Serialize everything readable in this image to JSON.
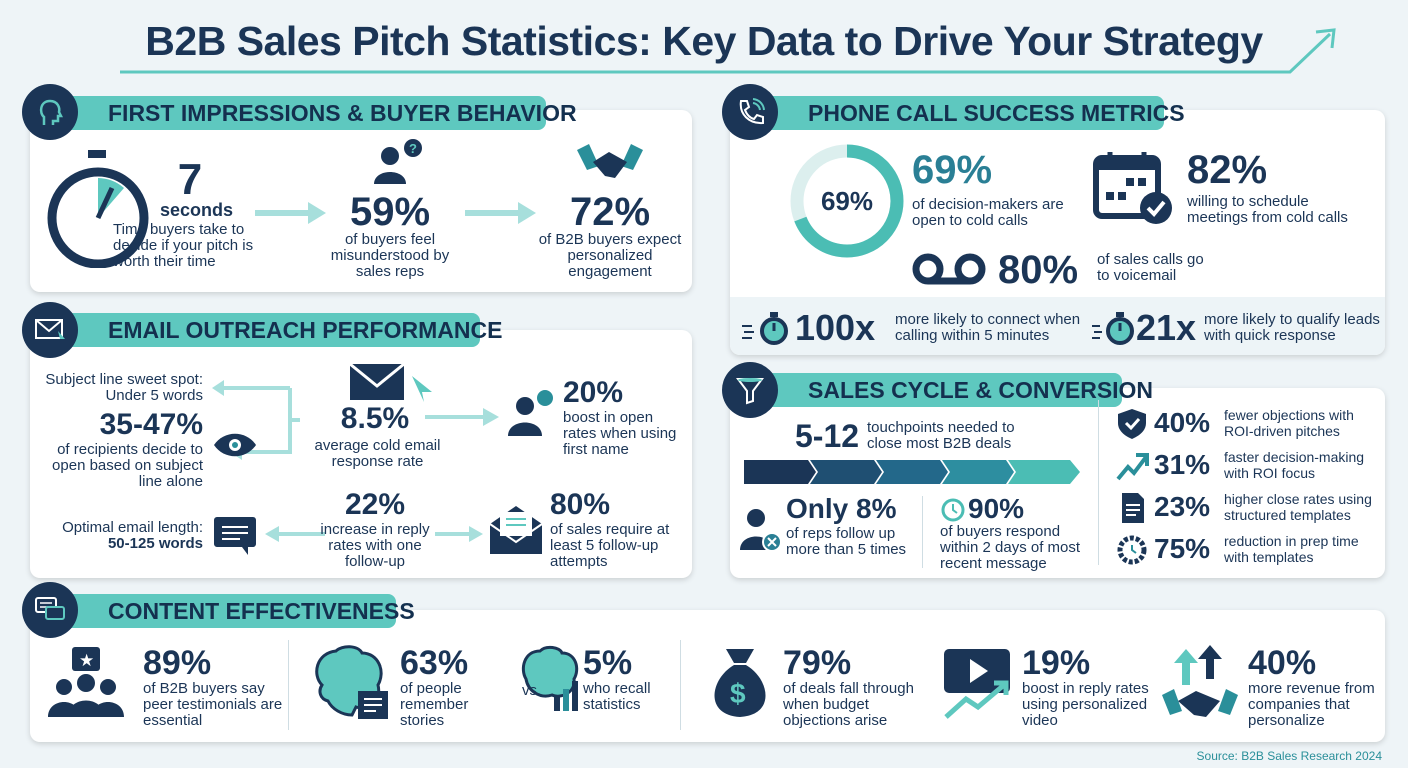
{
  "title": "B2B Sales Pitch Statistics: Key Data to Drive Your Strategy",
  "colors": {
    "navy": "#1b3556",
    "teal": "#5ec8bf",
    "background": "#eef4f7"
  },
  "first_impressions": {
    "heading": "FIRST IMPRESSIONS & BUYER BEHAVIOR",
    "icon": "head-icon",
    "stats": [
      {
        "value": "7",
        "unit": "seconds",
        "text": "Time buyers take to decide if your pitch is worth their time",
        "icon": "stopwatch-icon"
      },
      {
        "value": "59%",
        "text": "of buyers feel misunderstood by sales reps",
        "icon": "confused-person-icon"
      },
      {
        "value": "72%",
        "text": "of B2B buyers expect personalized engagement",
        "icon": "handshake-icon"
      }
    ]
  },
  "email": {
    "heading": "EMAIL OUTREACH PERFORMANCE",
    "icon": "email-cursor-icon",
    "subject_spot": "Subject line sweet spot: Under 5 words",
    "open_value": "35-47%",
    "open_text": "of recipients decide to open based on subject line alone",
    "response_value": "8.5%",
    "response_text": "average cold email response rate",
    "name_value": "20%",
    "name_text": "boost in open rates when using first name",
    "length_text": "Optimal email length:",
    "length_value": "50-125 words",
    "reply_value": "22%",
    "reply_text": "increase in reply rates with one follow-up",
    "followup_value": "80%",
    "followup_text": "of sales require at least 5 follow-up attempts"
  },
  "phone": {
    "heading": "PHONE CALL SUCCESS METRICS",
    "icon": "phone-icon",
    "donut_label": "69%",
    "donut_fraction": 0.69,
    "open_value": "69%",
    "open_text": "of decision-makers are open to cold calls",
    "schedule_value": "82%",
    "schedule_text": "willing to schedule meetings from cold calls",
    "voicemail_value": "80%",
    "voicemail_text": "of sales calls go to voicemail",
    "connect_value": "100x",
    "connect_text": "more likely to connect when calling within 5 minutes",
    "qualify_value": "21x",
    "qualify_text": "more likely to qualify leads with quick response"
  },
  "sales_cycle": {
    "heading": "SALES CYCLE & CONVERSION",
    "icon": "funnel-icon",
    "touch_value": "5-12",
    "touch_text": "touchpoints needed to close most B2B deals",
    "reps_value": "Only 8%",
    "reps_text": "of reps follow up more than 5 times",
    "buyers_value": "90%",
    "buyers_text": "of buyers respond within 2 days of most recent message",
    "side": [
      {
        "value": "40%",
        "text": "fewer objections with ROI-driven pitches",
        "icon": "shield-check-icon"
      },
      {
        "value": "31%",
        "text": "faster decision-making with ROI focus",
        "icon": "trend-up-icon"
      },
      {
        "value": "23%",
        "text": "higher close rates using structured templates",
        "icon": "document-icon"
      },
      {
        "value": "75%",
        "text": "reduction in prep time with templates",
        "icon": "gear-clock-icon"
      }
    ]
  },
  "content": {
    "heading": "CONTENT EFFECTIVENESS",
    "icon": "chat-bubbles-icon",
    "items": [
      {
        "value": "89%",
        "text": "of B2B buyers say peer testimonials are essential",
        "icon": "group-star-icon"
      },
      {
        "value": "63%",
        "text": "of people remember stories",
        "icon": "brain-book-icon"
      },
      {
        "value": "5%",
        "text": "who recall statistics",
        "icon": "brain-chart-icon"
      },
      {
        "value": "79%",
        "text": "of deals fall through when budget objections arise",
        "icon": "money-bag-icon"
      },
      {
        "value": "19%",
        "text": "boost in reply rates using personalized video",
        "icon": "video-play-icon"
      },
      {
        "value": "40%",
        "text": "more revenue from companies that personalize",
        "icon": "handshake-growth-icon"
      }
    ],
    "vs": "vs."
  },
  "source": {
    "label": "Source:",
    "value": "B2B Sales Research 2024"
  }
}
